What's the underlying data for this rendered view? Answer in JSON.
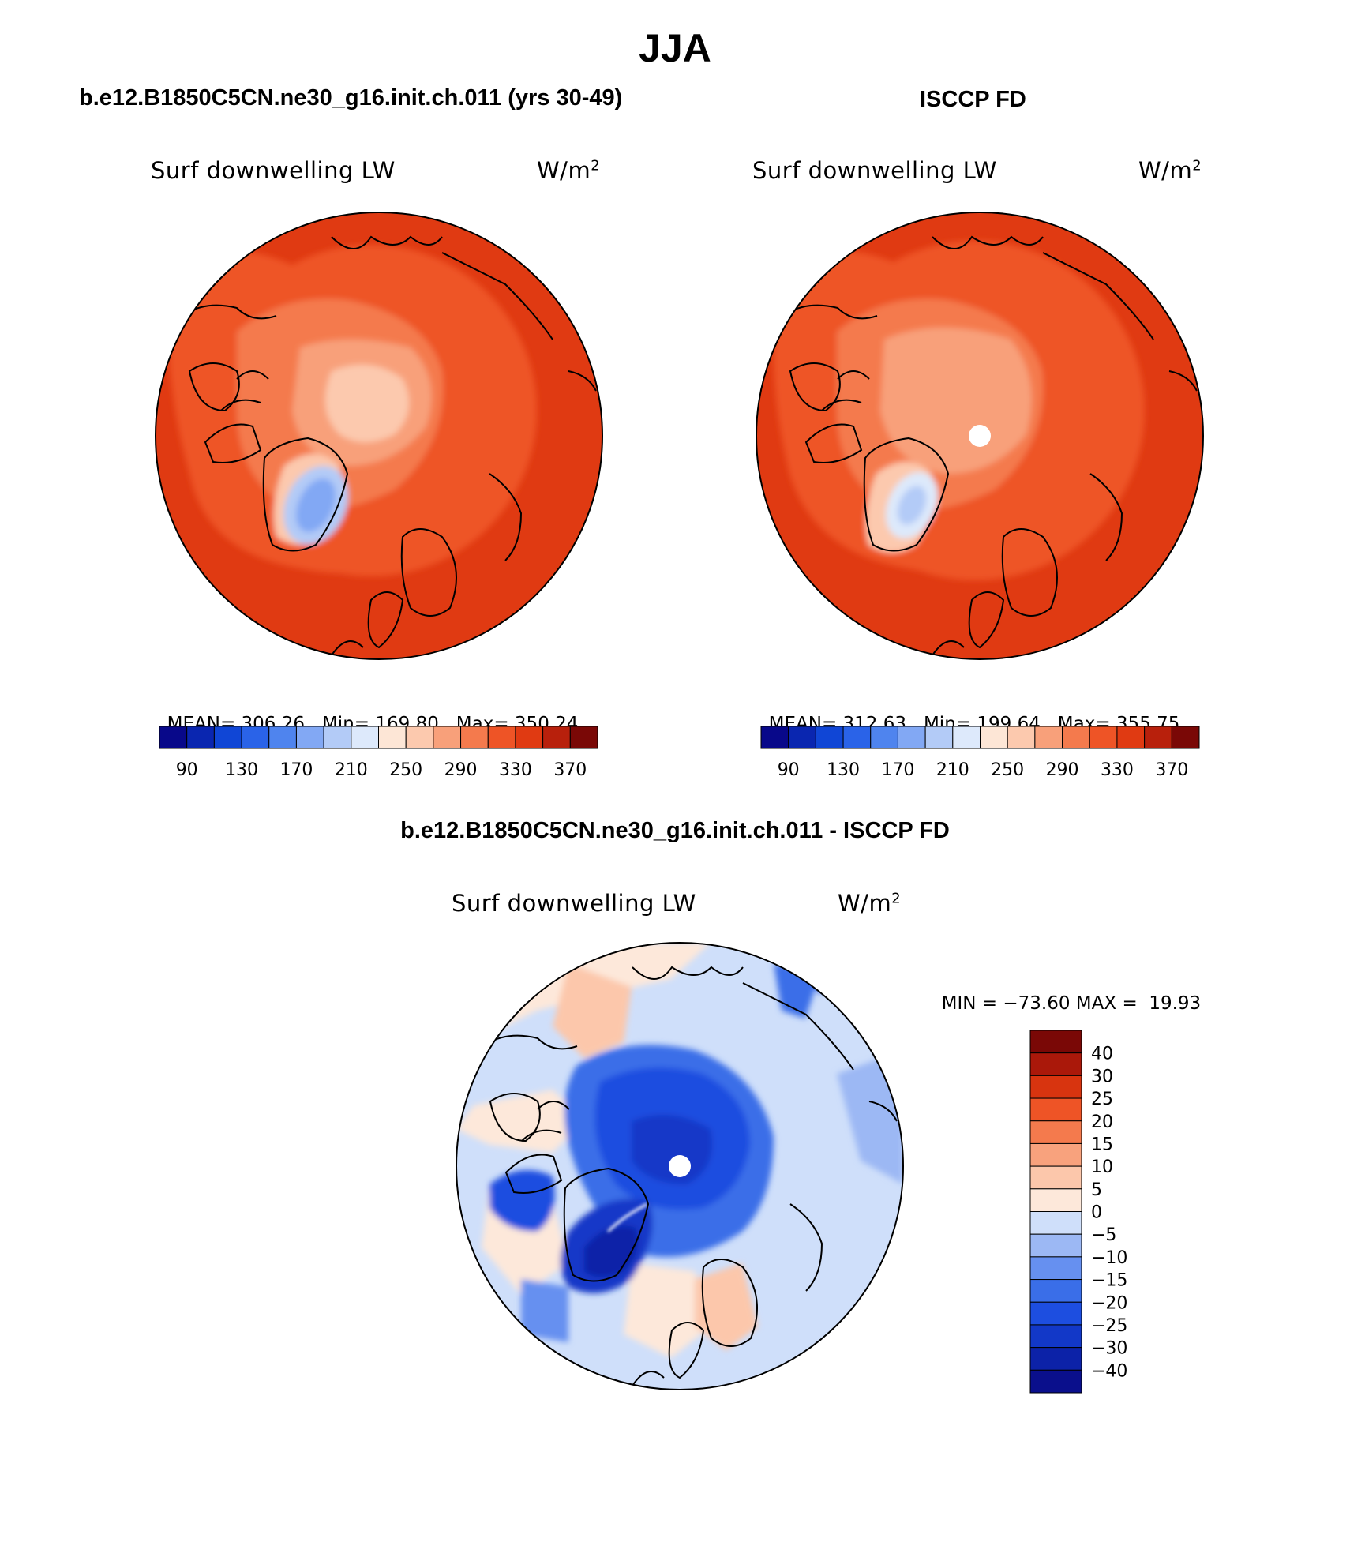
{
  "figure": {
    "season": "JJA"
  },
  "panels": [
    {
      "header": "b.e12.B1850C5CN.ne30_g16.init.ch.011 (yrs 30-49)",
      "variable": "Surf downwelling LW",
      "units": "W/m",
      "units_exp": "2",
      "stats": {
        "mean_label": "MEAN=",
        "mean": "306.26",
        "min_label": "Min=",
        "min": "169.80",
        "max_label": "Max=",
        "max": "350.24"
      }
    },
    {
      "header": "ISCCP FD",
      "variable": "Surf downwelling LW",
      "units": "W/m",
      "units_exp": "2",
      "stats": {
        "mean_label": "MEAN=",
        "mean": "312.63",
        "min_label": "Min=",
        "min": "199.64",
        "max_label": "Max=",
        "max": "355.75"
      }
    },
    {
      "header": "b.e12.B1850C5CN.ne30_g16.init.ch.011 - ISCCP FD",
      "variable": "Surf downwelling LW",
      "units": "W/m",
      "units_exp": "2",
      "stats": {
        "min_label": "MIN =",
        "min": "−73.60",
        "max_label": "MAX =",
        "max": "19.93"
      }
    }
  ],
  "colorbar_abs": {
    "colors": [
      "#08088a",
      "#0a26b0",
      "#1046d6",
      "#2a63e8",
      "#4f84ee",
      "#82a8f4",
      "#b3cbf7",
      "#dde9fb",
      "#fde6d6",
      "#fcc9ae",
      "#f8a07a",
      "#f47a4d",
      "#ee5426",
      "#e03a12",
      "#b8200c",
      "#7a0806"
    ],
    "tick_labels": [
      "90",
      "130",
      "170",
      "210",
      "250",
      "290",
      "330",
      "370"
    ]
  },
  "colorbar_diff": {
    "colors": [
      "#0a0f8c",
      "#0c22a8",
      "#1238c8",
      "#1d4ee0",
      "#3a6ee8",
      "#6690f0",
      "#9cb8f4",
      "#cfdffa",
      "#fde8da",
      "#fcc7ab",
      "#f8a27d",
      "#f47a4d",
      "#ee5426",
      "#d8340f",
      "#aa180a",
      "#7a0806"
    ],
    "tick_labels": [
      "−40",
      "−30",
      "−25",
      "−20",
      "−15",
      "−10",
      "−5",
      "0",
      "5",
      "10",
      "15",
      "20",
      "25",
      "30",
      "40"
    ]
  },
  "chart_data": [
    {
      "type": "polar stereographic map",
      "title": "Surf downwelling LW",
      "units": "W/m2",
      "stats": {
        "mean": 306.26,
        "min": 169.8,
        "max": 350.24
      },
      "levels": [
        90,
        100,
        130,
        150,
        170,
        190,
        210,
        230,
        250,
        270,
        290,
        310,
        330,
        350,
        370
      ]
    },
    {
      "type": "polar stereographic map",
      "title": "Surf downwelling LW",
      "units": "W/m2",
      "stats": {
        "mean": 312.63,
        "min": 199.64,
        "max": 355.75
      },
      "levels": [
        90,
        100,
        130,
        150,
        170,
        190,
        210,
        230,
        250,
        270,
        290,
        310,
        330,
        350,
        370
      ]
    },
    {
      "type": "polar stereographic map (difference)",
      "title": "Surf downwelling LW",
      "units": "W/m2",
      "stats": {
        "min": -73.6,
        "max": 19.93
      },
      "levels": [
        -40,
        -30,
        -25,
        -20,
        -15,
        -10,
        -5,
        0,
        5,
        10,
        15,
        20,
        25,
        30,
        40
      ]
    }
  ]
}
